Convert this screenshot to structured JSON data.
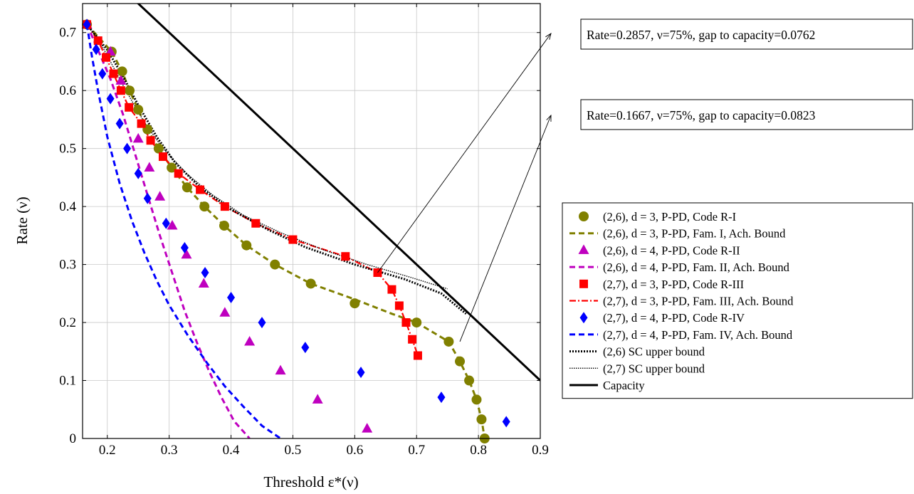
{
  "chart_data": {
    "type": "line",
    "title": "",
    "xlabel": "Threshold ε*(ν)",
    "ylabel": "Rate (ν)",
    "xlim": [
      0.16,
      0.9
    ],
    "ylim": [
      0,
      0.75
    ],
    "xticks": [
      0.2,
      0.3,
      0.4,
      0.5,
      0.6,
      0.7,
      0.8,
      0.9
    ],
    "xtick_labels": [
      "0.2",
      "0.3",
      "0.4",
      "0.5",
      "0.6",
      "0.7",
      "0.8",
      "0.9"
    ],
    "yticks": [
      0,
      0.1,
      0.2,
      0.3,
      0.4,
      0.5,
      0.6,
      0.7
    ],
    "ytick_labels": [
      "0",
      "0.1",
      "0.2",
      "0.3",
      "0.4",
      "0.5",
      "0.6",
      "0.7"
    ],
    "grid": true,
    "legend_position": "right",
    "series": [
      {
        "name": "(2,6), d = 3, P-PD, Code R-I",
        "kind": "scatter",
        "marker": "circle",
        "color": "#808000",
        "x": [
          0.167,
          0.207,
          0.224,
          0.236,
          0.25,
          0.265,
          0.283,
          0.304,
          0.329,
          0.357,
          0.389,
          0.425,
          0.471,
          0.529,
          0.6,
          0.7,
          0.752,
          0.77,
          0.785,
          0.797,
          0.805,
          0.81
        ],
        "y": [
          0.714,
          0.667,
          0.633,
          0.6,
          0.567,
          0.533,
          0.5,
          0.467,
          0.433,
          0.4,
          0.367,
          0.333,
          0.3,
          0.267,
          0.233,
          0.2,
          0.167,
          0.133,
          0.1,
          0.067,
          0.033,
          0.0
        ]
      },
      {
        "name": "(2,6), d = 3, P-PD, Fam. I, Ach. Bound",
        "kind": "line",
        "dash": "dashed",
        "color": "#808000",
        "x": [
          0.167,
          0.207,
          0.224,
          0.236,
          0.25,
          0.265,
          0.283,
          0.304,
          0.329,
          0.357,
          0.389,
          0.425,
          0.471,
          0.529,
          0.6,
          0.66,
          0.7,
          0.752,
          0.77,
          0.785,
          0.797,
          0.805,
          0.81
        ],
        "y": [
          0.714,
          0.667,
          0.633,
          0.6,
          0.567,
          0.533,
          0.5,
          0.467,
          0.433,
          0.4,
          0.367,
          0.333,
          0.3,
          0.267,
          0.24,
          0.215,
          0.2,
          0.167,
          0.133,
          0.1,
          0.067,
          0.033,
          0.0
        ]
      },
      {
        "name": "(2,6), d = 4, P-PD, Code R-II",
        "kind": "scatter",
        "marker": "triangle",
        "color": "#bf00bf",
        "x": [
          0.167,
          0.205,
          0.222,
          0.25,
          0.268,
          0.285,
          0.305,
          0.328,
          0.356,
          0.39,
          0.43,
          0.48,
          0.54,
          0.62
        ],
        "y": [
          0.714,
          0.667,
          0.617,
          0.517,
          0.467,
          0.417,
          0.367,
          0.317,
          0.267,
          0.217,
          0.167,
          0.117,
          0.067,
          0.017
        ]
      },
      {
        "name": "(2,6), d = 4, P-PD, Fam. II, Ach. Bound",
        "kind": "line",
        "dash": "dashed",
        "color": "#bf00bf",
        "x": [
          0.167,
          0.185,
          0.205,
          0.225,
          0.245,
          0.265,
          0.285,
          0.305,
          0.325,
          0.345,
          0.365,
          0.385,
          0.405,
          0.43
        ],
        "y": [
          0.714,
          0.67,
          0.62,
          0.56,
          0.49,
          0.42,
          0.35,
          0.285,
          0.22,
          0.165,
          0.115,
          0.07,
          0.03,
          0.0
        ]
      },
      {
        "name": "(2,7), d = 3, P-PD, Code R-III",
        "kind": "scatter",
        "marker": "square",
        "color": "#ff0000",
        "x": [
          0.167,
          0.185,
          0.198,
          0.21,
          0.222,
          0.235,
          0.255,
          0.27,
          0.29,
          0.315,
          0.35,
          0.39,
          0.44,
          0.5,
          0.585,
          0.637,
          0.66,
          0.672,
          0.683,
          0.693,
          0.702
        ],
        "y": [
          0.714,
          0.686,
          0.657,
          0.629,
          0.6,
          0.571,
          0.543,
          0.514,
          0.486,
          0.457,
          0.429,
          0.4,
          0.371,
          0.343,
          0.314,
          0.286,
          0.257,
          0.229,
          0.2,
          0.171,
          0.143
        ]
      },
      {
        "name": "(2,7), d = 3, P-PD, Fam. III, Ach. Bound",
        "kind": "line",
        "dash": "dashdot",
        "color": "#ff0000",
        "x": [
          0.167,
          0.185,
          0.198,
          0.21,
          0.222,
          0.235,
          0.255,
          0.27,
          0.29,
          0.315,
          0.35,
          0.39,
          0.44,
          0.5,
          0.585,
          0.637,
          0.66,
          0.672,
          0.683,
          0.693,
          0.702
        ],
        "y": [
          0.714,
          0.686,
          0.657,
          0.629,
          0.6,
          0.571,
          0.543,
          0.514,
          0.486,
          0.457,
          0.429,
          0.4,
          0.371,
          0.343,
          0.314,
          0.286,
          0.257,
          0.229,
          0.2,
          0.171,
          0.143
        ]
      },
      {
        "name": "(2,7), d = 4, P-PD, Code R-IV",
        "kind": "scatter",
        "marker": "diamond",
        "color": "#0000ff",
        "x": [
          0.167,
          0.182,
          0.192,
          0.205,
          0.22,
          0.232,
          0.25,
          0.265,
          0.295,
          0.325,
          0.358,
          0.4,
          0.45,
          0.52,
          0.61,
          0.74,
          0.845
        ],
        "y": [
          0.714,
          0.671,
          0.629,
          0.586,
          0.543,
          0.5,
          0.457,
          0.414,
          0.371,
          0.329,
          0.286,
          0.243,
          0.2,
          0.157,
          0.114,
          0.071,
          0.029
        ]
      },
      {
        "name": "(2,7), d = 4, P-PD, Fam. IV, Ach. Bound",
        "kind": "line",
        "dash": "dashed",
        "color": "#0000ff",
        "x": [
          0.167,
          0.175,
          0.185,
          0.2,
          0.22,
          0.24,
          0.26,
          0.28,
          0.3,
          0.33,
          0.36,
          0.39,
          0.42,
          0.45,
          0.48
        ],
        "y": [
          0.714,
          0.66,
          0.6,
          0.52,
          0.44,
          0.375,
          0.32,
          0.272,
          0.23,
          0.178,
          0.132,
          0.09,
          0.055,
          0.022,
          0.0
        ]
      },
      {
        "name": "(2,6) SC upper bound",
        "kind": "line",
        "dash": "dotted-thick",
        "color": "#000000",
        "x": [
          0.167,
          0.2,
          0.225,
          0.25,
          0.28,
          0.31,
          0.35,
          0.4,
          0.46,
          0.52,
          0.6,
          0.68,
          0.74,
          0.78
        ],
        "y": [
          0.714,
          0.67,
          0.625,
          0.575,
          0.52,
          0.475,
          0.433,
          0.395,
          0.36,
          0.33,
          0.3,
          0.275,
          0.25,
          0.215
        ]
      },
      {
        "name": "(2,7) SC upper bound",
        "kind": "line",
        "dash": "dotted-thin",
        "color": "#000000",
        "x": [
          0.167,
          0.19,
          0.21,
          0.23,
          0.26,
          0.29,
          0.33,
          0.37,
          0.42,
          0.48,
          0.55,
          0.62,
          0.69,
          0.75
        ],
        "y": [
          0.714,
          0.68,
          0.64,
          0.6,
          0.545,
          0.5,
          0.455,
          0.42,
          0.385,
          0.355,
          0.325,
          0.3,
          0.278,
          0.258
        ]
      },
      {
        "name": "Capacity",
        "kind": "line",
        "dash": "solid",
        "color": "#000000",
        "x": [
          0.1,
          0.9
        ],
        "y": [
          0.9,
          0.1
        ]
      }
    ],
    "annotations": [
      {
        "text": "Rate=0.2857, ν=75%, gap to capacity=0.0762",
        "point": [
          0.637,
          0.286
        ]
      },
      {
        "text": "Rate=0.1667, ν=75%, gap to capacity=0.0823",
        "point": [
          0.77,
          0.167
        ]
      }
    ]
  }
}
